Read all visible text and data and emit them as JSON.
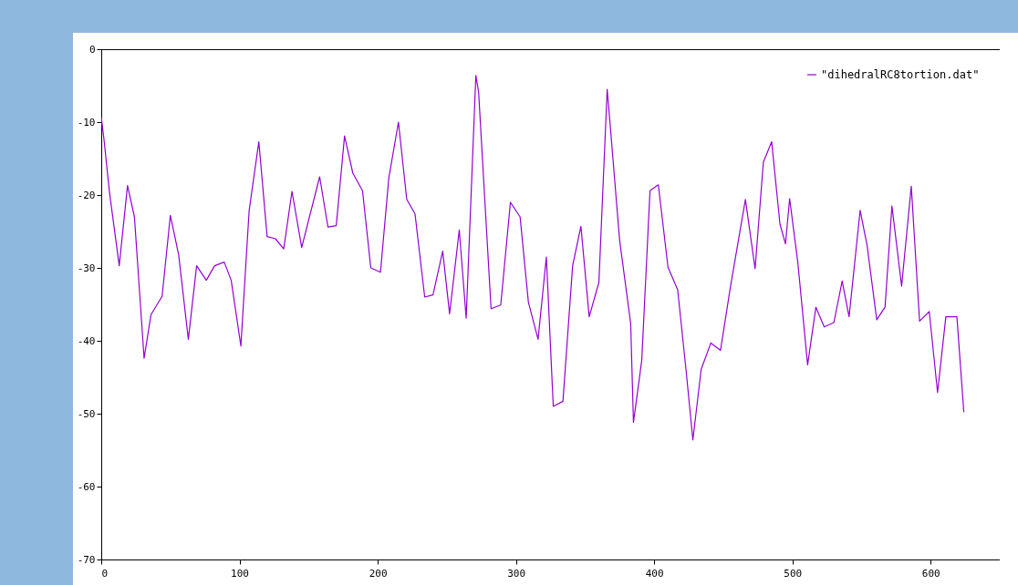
{
  "chart_data": {
    "type": "line",
    "x": [
      0,
      2,
      6,
      13,
      19,
      24,
      31,
      36,
      44,
      50,
      56,
      63,
      69,
      76,
      82,
      89,
      94,
      101,
      107,
      114,
      120,
      126,
      132,
      138,
      145,
      158,
      164,
      170,
      176,
      182,
      189,
      195,
      202,
      208,
      215,
      221,
      227,
      234,
      240,
      247,
      252,
      259,
      264,
      271,
      273,
      282,
      289,
      296,
      303,
      309,
      316,
      322,
      327,
      334,
      341,
      347,
      353,
      360,
      366,
      368,
      375,
      383,
      385,
      391,
      397,
      403,
      410,
      417,
      423,
      428,
      434,
      441,
      448,
      455,
      466,
      473,
      479,
      485,
      491,
      495,
      498,
      504,
      511,
      517,
      523,
      530,
      536,
      541,
      549,
      554,
      561,
      567,
      572,
      579,
      586,
      592,
      599,
      605,
      611,
      619,
      624
    ],
    "series": [
      {
        "name": "\"dihedralRC8tortion.dat\"",
        "color": "#9400d3",
        "values": [
          -9.3,
          -12.4,
          -19.7,
          -29.7,
          -18.7,
          -23,
          -42.4,
          -36.4,
          -33.9,
          -22.8,
          -28.2,
          -39.8,
          -29.7,
          -31.7,
          -29.7,
          -29.2,
          -31.7,
          -40.7,
          -22.1,
          -12.7,
          -25.7,
          -26,
          -27.4,
          -19.5,
          -27.2,
          -17.5,
          -24.4,
          -24.2,
          -11.9,
          -17,
          -19.4,
          -30,
          -30.6,
          -17.7,
          -10,
          -20.6,
          -22.6,
          -34,
          -33.7,
          -27.7,
          -36.3,
          -24.8,
          -36.9,
          -3.6,
          -5.9,
          -35.6,
          -35.1,
          -21,
          -23,
          -34.7,
          -39.8,
          -28.5,
          -49,
          -48.3,
          -29.7,
          -24.3,
          -36.7,
          -32,
          -5.5,
          -10,
          -26.2,
          -37.6,
          -51.2,
          -42.7,
          -19.4,
          -18.6,
          -29.9,
          -33,
          -43.9,
          -53.6,
          -43.9,
          -40.3,
          -41.3,
          -32.8,
          -20.6,
          -30.1,
          -15.5,
          -12.7,
          -24,
          -26.7,
          -20.5,
          -29.4,
          -43.3,
          -35.4,
          -38.1,
          -37.5,
          -31.8,
          -36.7,
          -22.1,
          -26.9,
          -37.1,
          -35.4,
          -21.5,
          -32.5,
          -18.8,
          -37.3,
          -36,
          -47.1,
          -36.7,
          -36.7,
          -49.8
        ]
      }
    ],
    "xlim": [
      0,
      650
    ],
    "ylim": [
      -70,
      0
    ],
    "xticks": [
      0,
      100,
      200,
      300,
      400,
      500,
      600
    ],
    "yticks": [
      -70,
      -60,
      -50,
      -40,
      -30,
      -20,
      -10,
      0
    ],
    "legend": "top right"
  }
}
